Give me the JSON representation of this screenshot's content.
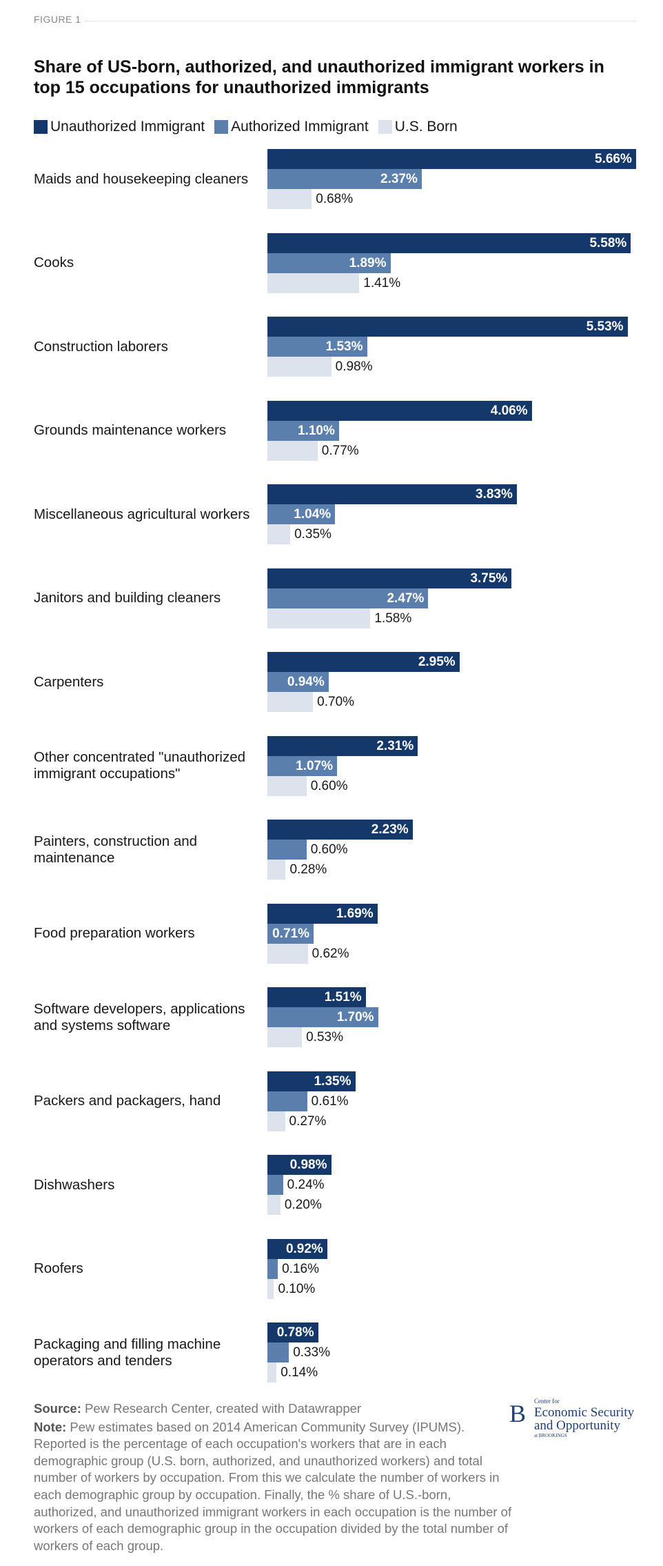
{
  "figure_label": "FIGURE 1",
  "chart_data": {
    "type": "bar",
    "orientation": "horizontal",
    "title": "Share of US-born, authorized, and unauthorized immigrant workers in top 15 occupations for unauthorized immigrants",
    "categories": [
      "Maids and housekeeping cleaners",
      "Cooks",
      "Construction laborers",
      "Grounds maintenance workers",
      "Miscellaneous agricultural workers",
      "Janitors and building cleaners",
      "Carpenters",
      "Other concentrated \"unauthorized immigrant occupations\"",
      "Painters, construction and maintenance",
      "Food preparation workers",
      "Software developers, applications and systems software",
      "Packers and packagers, hand",
      "Dishwashers",
      "Roofers",
      "Packaging and filling machine operators and tenders"
    ],
    "series": [
      {
        "name": "Unauthorized Immigrant",
        "color": "#15386b",
        "values": [
          5.66,
          5.58,
          5.53,
          4.06,
          3.83,
          3.75,
          2.95,
          2.31,
          2.23,
          1.69,
          1.51,
          1.35,
          0.98,
          0.92,
          0.78
        ],
        "value_labels": [
          "5.66%",
          "5.58%",
          "5.53%",
          "4.06%",
          "3.83%",
          "3.75%",
          "2.95%",
          "2.31%",
          "2.23%",
          "1.69%",
          "1.51%",
          "1.35%",
          "0.98%",
          "0.92%",
          "0.78%"
        ]
      },
      {
        "name": "Authorized Immigrant",
        "color": "#5b7fad",
        "values": [
          2.37,
          1.89,
          1.53,
          1.1,
          1.04,
          2.47,
          0.94,
          1.07,
          0.6,
          0.71,
          1.7,
          0.61,
          0.24,
          0.16,
          0.33
        ],
        "value_labels": [
          "2.37%",
          "1.89%",
          "1.53%",
          "1.10%",
          "1.04%",
          "2.47%",
          "0.94%",
          "1.07%",
          "0.60%",
          "0.71%",
          "1.70%",
          "0.61%",
          "0.24%",
          "0.16%",
          "0.33%"
        ]
      },
      {
        "name": "U.S. Born",
        "color": "#dde3ec",
        "values": [
          0.68,
          1.41,
          0.98,
          0.77,
          0.35,
          1.58,
          0.7,
          0.6,
          0.28,
          0.62,
          0.53,
          0.27,
          0.2,
          0.1,
          0.14
        ],
        "value_labels": [
          "0.68%",
          "1.41%",
          "0.98%",
          "0.77%",
          "0.35%",
          "1.58%",
          "0.70%",
          "0.60%",
          "0.28%",
          "0.62%",
          "0.53%",
          "0.27%",
          "0.20%",
          "0.10%",
          "0.14%"
        ]
      }
    ],
    "legend": "top-left"
  },
  "footer": {
    "source_label": "Source:",
    "source": "Pew Research Center, created with Datawrapper",
    "note_label": "Note:",
    "note": "Pew estimates based on 2014 American Community Survey (IPUMS). Reported is the percentage of each occupation's workers that are in each demographic group (U.S. born, authorized, and unauthorized workers) and total number of workers by occupation. From this we calculate the number of workers in each demographic group by occupation. Finally, the % share of U.S.-born, authorized, and unauthorized immigrant workers in each occupation is the number of workers of each demographic group in the occupation divided by the total number of workers of each group."
  },
  "logo": {
    "mark": "B",
    "line1": "Center for",
    "line2": "Economic Security",
    "line3": "and Opportunity",
    "line4": "at BROOKINGS"
  }
}
